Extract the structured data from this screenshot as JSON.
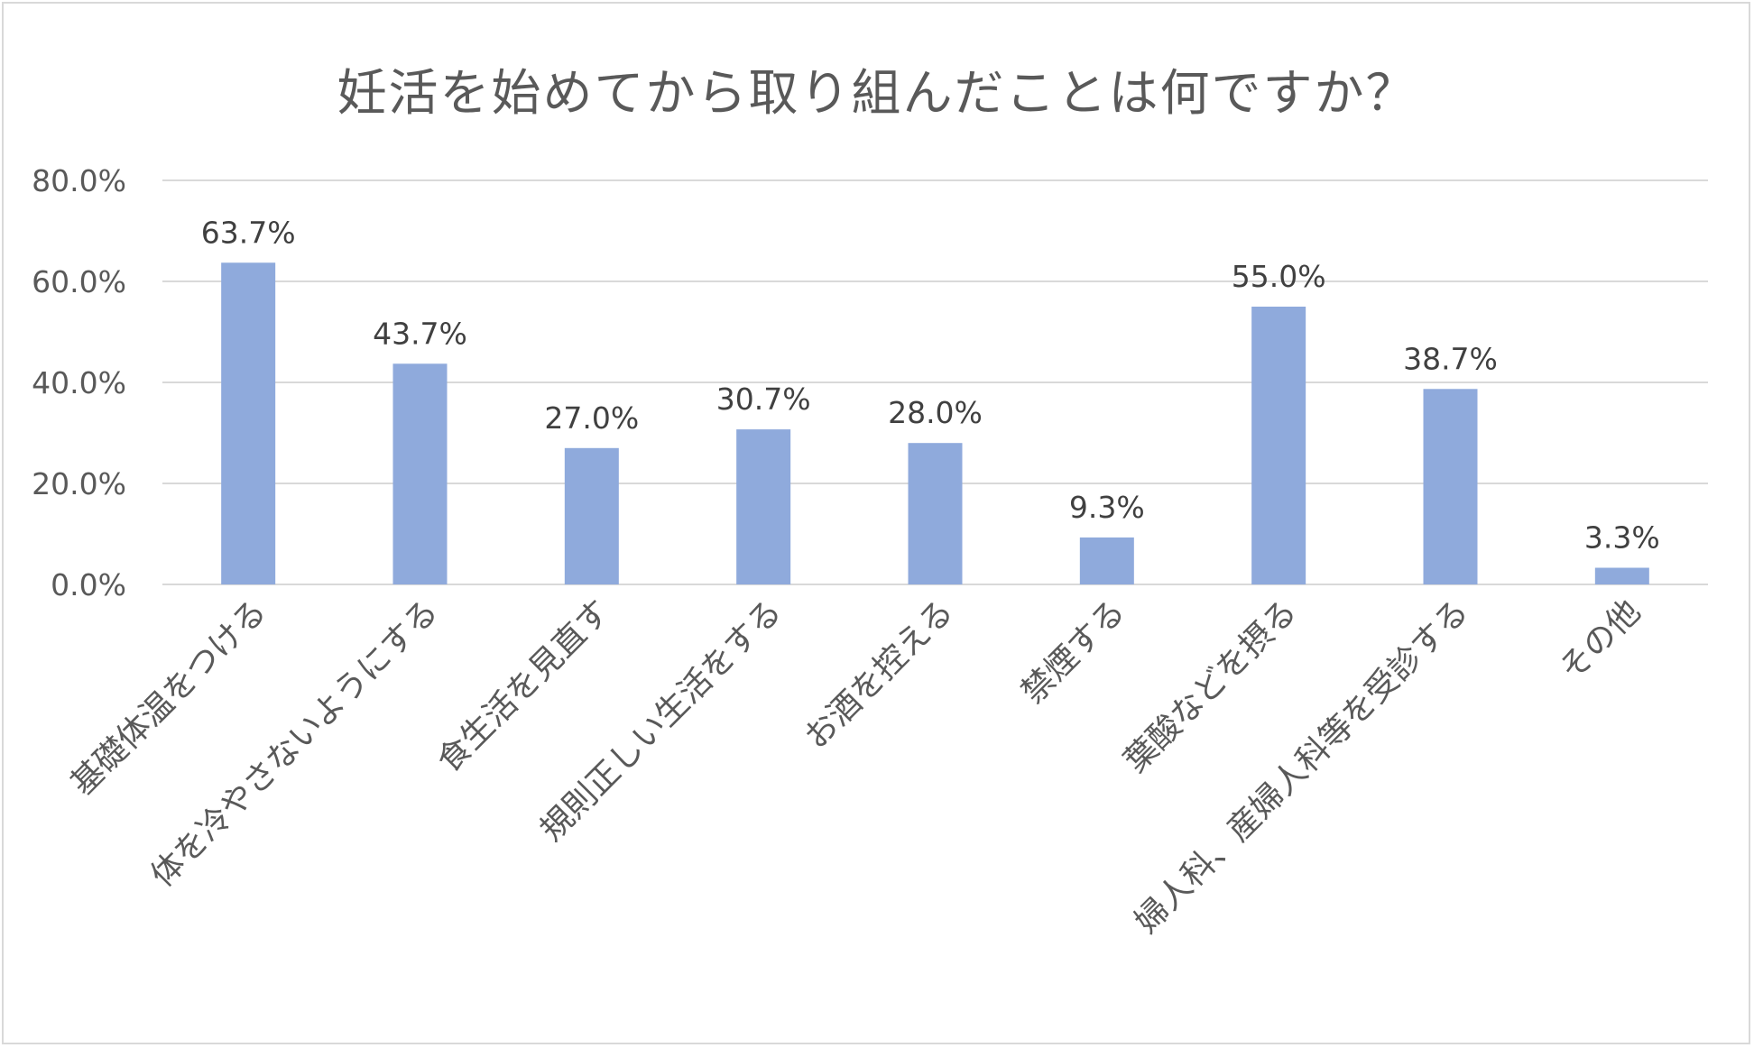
{
  "chart_data": {
    "type": "bar",
    "title": "妊活を始めてから取り組んだことは何ですか？",
    "categories": [
      "基礎体温をつける",
      "体を冷やさないようにする",
      "食生活を見直す",
      "規則正しい生活をする",
      "お酒を控える",
      "禁煙する",
      "葉酸などを摂る",
      "婦人科、産婦人科等を受診する",
      "その他"
    ],
    "values": [
      63.7,
      43.7,
      27.0,
      30.7,
      28.0,
      9.3,
      55.0,
      38.7,
      3.3
    ],
    "data_labels": [
      "63.7%",
      "43.7%",
      "27.0%",
      "30.7%",
      "28.0%",
      "9.3%",
      "55.0%",
      "38.7%",
      "3.3%"
    ],
    "y_ticks": [
      "0.0%",
      "20.0%",
      "40.0%",
      "60.0%",
      "80.0%"
    ],
    "ylim": [
      0,
      80
    ],
    "grid": true,
    "legend": "none",
    "xlabel": "",
    "ylabel": "",
    "colors": {
      "bar": "#8faadc",
      "grid": "#d9d9d9",
      "text": "#595959",
      "label": "#404040"
    }
  }
}
